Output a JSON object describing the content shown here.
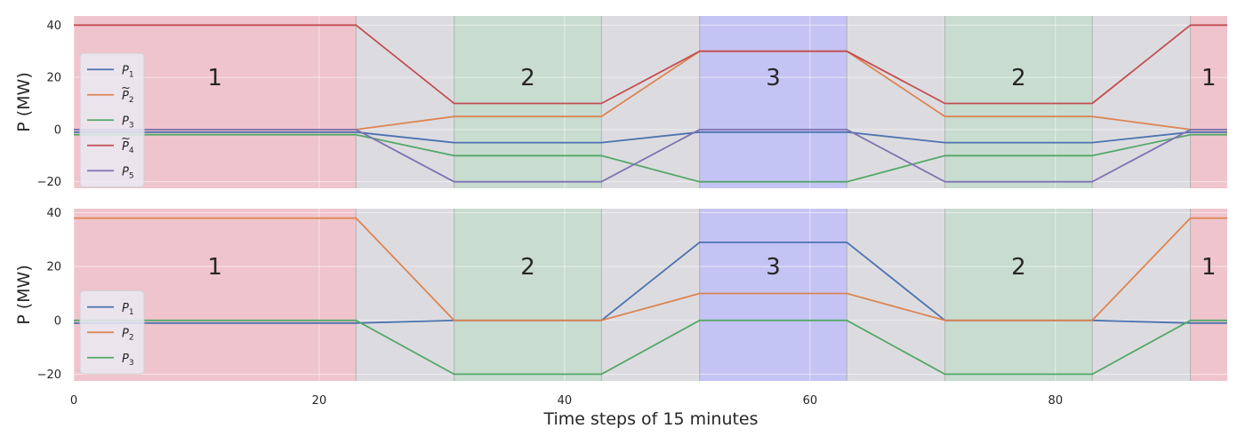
{
  "chart_data": {
    "type": "line",
    "xlabel": "Time steps of 15 minutes",
    "xlim": [
      0,
      94
    ],
    "x_ticks": [
      "0",
      "20",
      "40",
      "60",
      "80"
    ],
    "x_tick_values": [
      0,
      20,
      40,
      60,
      80
    ],
    "colors": {
      "blue": "#4c72b0",
      "orange": "#dd8452",
      "green": "#55a868",
      "red": "#c44e52",
      "purple": "#8172b3",
      "region_1": "#f0c4cc",
      "region_2": "#c8dcd0",
      "region_3": "#c4c4f4",
      "transition": "#dcdce0"
    },
    "regions": [
      {
        "label": "1",
        "x0": 0,
        "x1": 23,
        "color": "region_1"
      },
      {
        "label": "",
        "x0": 23,
        "x1": 31,
        "color": "transition"
      },
      {
        "label": "2",
        "x0": 31,
        "x1": 43,
        "color": "region_2"
      },
      {
        "label": "",
        "x0": 43,
        "x1": 51,
        "color": "transition"
      },
      {
        "label": "3",
        "x0": 51,
        "x1": 63,
        "color": "region_3"
      },
      {
        "label": "",
        "x0": 63,
        "x1": 71,
        "color": "transition"
      },
      {
        "label": "2",
        "x0": 71,
        "x1": 83,
        "color": "region_2"
      },
      {
        "label": "",
        "x0": 83,
        "x1": 91,
        "color": "transition"
      },
      {
        "label": "1",
        "x0": 91,
        "x1": 94,
        "color": "region_1"
      }
    ],
    "panels": [
      {
        "ylabel": "P (MW)",
        "ylim": [
          -22.5,
          43.5
        ],
        "y_ticks": [
          "−20",
          "0",
          "20",
          "40"
        ],
        "y_tick_values": [
          -20,
          0,
          20,
          40
        ],
        "legend_position": "middle-left",
        "series": [
          {
            "name": "P",
            "sub": "1",
            "tilde": false,
            "color": "blue",
            "x": [
              0,
              23,
              31,
              43,
              51,
              63,
              71,
              83,
              91,
              94
            ],
            "y": [
              -1,
              -1,
              -5,
              -5,
              -1,
              -1,
              -5,
              -5,
              -1,
              -1
            ]
          },
          {
            "name": "P",
            "sub": "2",
            "tilde": true,
            "color": "orange",
            "x": [
              0,
              23,
              31,
              43,
              51,
              63,
              71,
              83,
              91,
              94
            ],
            "y": [
              0,
              0,
              5,
              5,
              30,
              30,
              5,
              5,
              0,
              0
            ]
          },
          {
            "name": "P",
            "sub": "3",
            "tilde": false,
            "color": "green",
            "x": [
              0,
              23,
              31,
              43,
              51,
              63,
              71,
              83,
              91,
              94
            ],
            "y": [
              -2,
              -2,
              -10,
              -10,
              -20,
              -20,
              -10,
              -10,
              -2,
              -2
            ]
          },
          {
            "name": "P",
            "sub": "4",
            "tilde": true,
            "color": "red",
            "x": [
              0,
              23,
              31,
              43,
              51,
              63,
              71,
              83,
              91,
              94
            ],
            "y": [
              40,
              40,
              10,
              10,
              30,
              30,
              10,
              10,
              40,
              40
            ]
          },
          {
            "name": "P",
            "sub": "5",
            "tilde": false,
            "color": "purple",
            "x": [
              0,
              23,
              31,
              43,
              51,
              63,
              71,
              83,
              91,
              94
            ],
            "y": [
              0,
              0,
              -20,
              -20,
              0,
              0,
              -20,
              -20,
              0,
              0
            ]
          }
        ]
      },
      {
        "ylabel": "P (MW)",
        "ylim": [
          -22.5,
          41.5
        ],
        "y_ticks": [
          "−20",
          "0",
          "20",
          "40"
        ],
        "y_tick_values": [
          -20,
          0,
          20,
          40
        ],
        "legend_position": "lower-left",
        "series": [
          {
            "name": "P",
            "sub": "1",
            "tilde": false,
            "color": "blue",
            "x": [
              0,
              23,
              31,
              43,
              51,
              63,
              71,
              83,
              91,
              94
            ],
            "y": [
              -1,
              -1,
              0,
              0,
              29,
              29,
              0,
              0,
              -1,
              -1
            ]
          },
          {
            "name": "P",
            "sub": "2",
            "tilde": false,
            "color": "orange",
            "x": [
              0,
              23,
              31,
              43,
              51,
              63,
              71,
              83,
              91,
              94
            ],
            "y": [
              38,
              38,
              0,
              0,
              10,
              10,
              0,
              0,
              38,
              38
            ]
          },
          {
            "name": "P",
            "sub": "3",
            "tilde": false,
            "color": "green",
            "x": [
              0,
              23,
              31,
              43,
              51,
              63,
              71,
              83,
              91,
              94
            ],
            "y": [
              0,
              0,
              -20,
              -20,
              0,
              0,
              -20,
              -20,
              0,
              0
            ]
          }
        ]
      }
    ]
  }
}
